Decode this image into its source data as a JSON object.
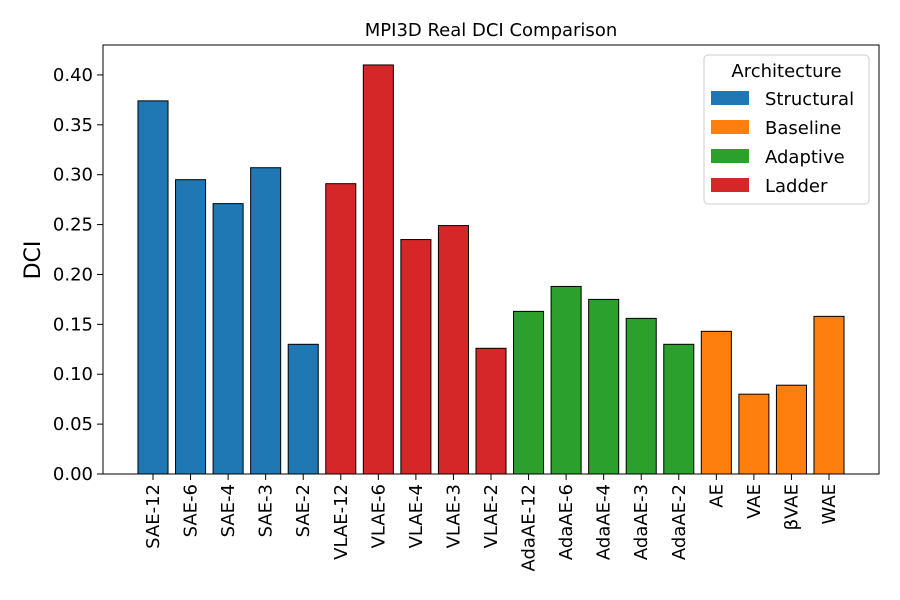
{
  "chart_data": {
    "type": "bar",
    "title": "MPI3D Real DCI Comparison",
    "xlabel": "",
    "ylabel": "DCI",
    "ylim": [
      0,
      0.43
    ],
    "yticks": [
      "0.00",
      "0.05",
      "0.10",
      "0.15",
      "0.20",
      "0.25",
      "0.30",
      "0.35",
      "0.40"
    ],
    "categories": [
      "SAE-12",
      "SAE-6",
      "SAE-4",
      "SAE-3",
      "SAE-2",
      "VLAE-12",
      "VLAE-6",
      "VLAE-4",
      "VLAE-3",
      "VLAE-2",
      "AdaAE-12",
      "AdaAE-6",
      "AdaAE-4",
      "AdaAE-3",
      "AdaAE-2",
      "AE",
      "VAE",
      "βVAE",
      "WAE"
    ],
    "values": [
      0.374,
      0.295,
      0.271,
      0.307,
      0.13,
      0.291,
      0.41,
      0.235,
      0.249,
      0.126,
      0.163,
      0.188,
      0.175,
      0.156,
      0.13,
      0.143,
      0.08,
      0.089,
      0.158
    ],
    "groups": [
      "Structural",
      "Structural",
      "Structural",
      "Structural",
      "Structural",
      "Ladder",
      "Ladder",
      "Ladder",
      "Ladder",
      "Ladder",
      "Adaptive",
      "Adaptive",
      "Adaptive",
      "Adaptive",
      "Adaptive",
      "Baseline",
      "Baseline",
      "Baseline",
      "Baseline"
    ],
    "legend": {
      "title": "Architecture",
      "placement": "top-right",
      "entries": [
        {
          "name": "Structural",
          "color": "#1f77b4"
        },
        {
          "name": "Baseline",
          "color": "#ff7f0e"
        },
        {
          "name": "Adaptive",
          "color": "#2ca02c"
        },
        {
          "name": "Ladder",
          "color": "#d62728"
        }
      ]
    },
    "grid": false
  }
}
